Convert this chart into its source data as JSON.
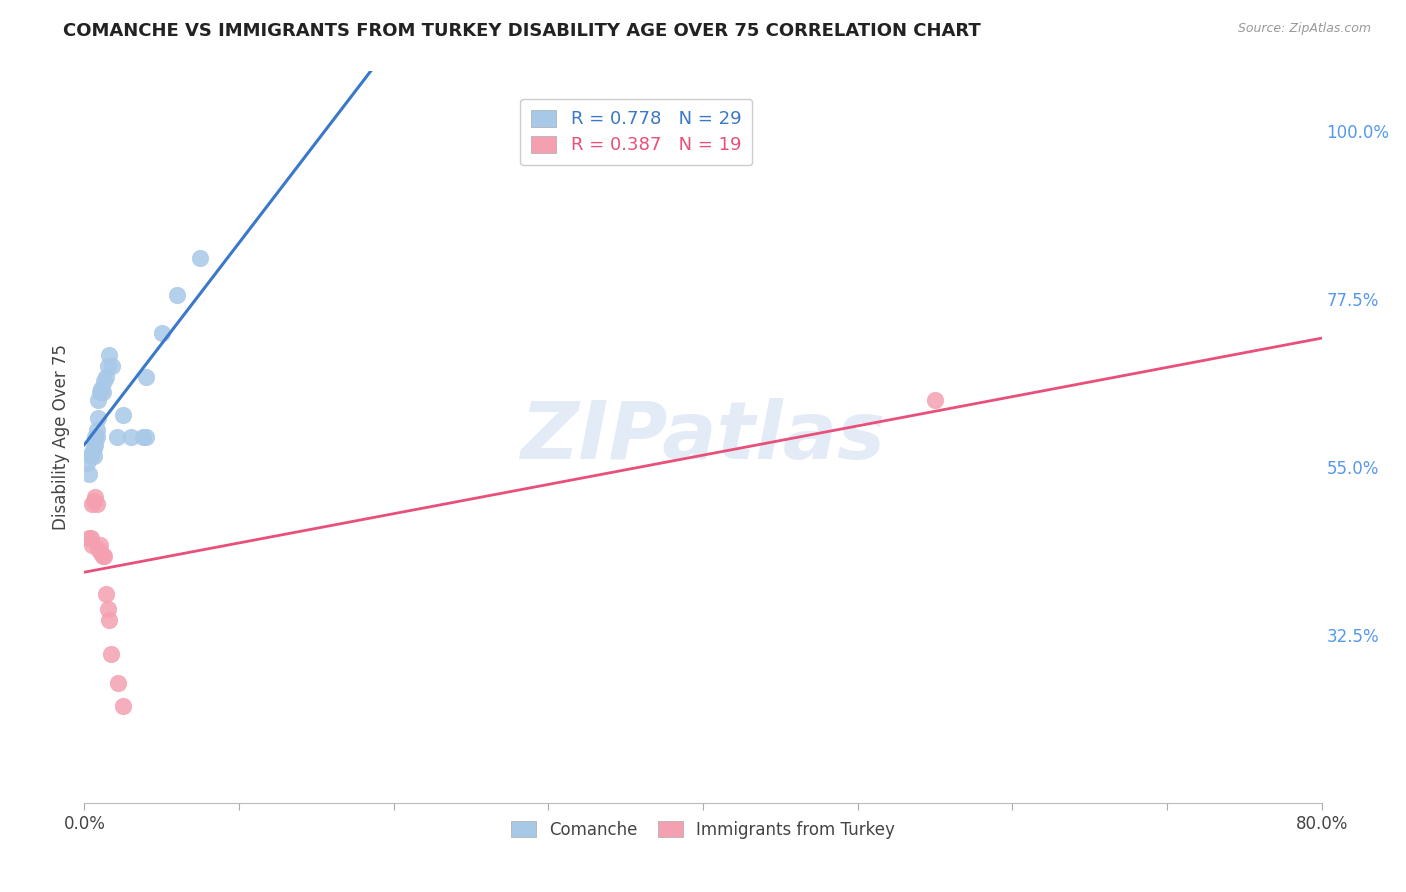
{
  "title": "COMANCHE VS IMMIGRANTS FROM TURKEY DISABILITY AGE OVER 75 CORRELATION CHART",
  "source": "Source: ZipAtlas.com",
  "ylabel": "Disability Age Over 75",
  "xlim": [
    0.0,
    0.8
  ],
  "ylim": [
    0.1,
    1.08
  ],
  "xtick_positions": [
    0.0,
    0.1,
    0.2,
    0.3,
    0.4,
    0.5,
    0.6,
    0.7,
    0.8
  ],
  "xticklabels": [
    "0.0%",
    "",
    "",
    "",
    "",
    "",
    "",
    "",
    "80.0%"
  ],
  "ytick_positions": [
    0.325,
    0.55,
    0.775,
    1.0
  ],
  "ytick_labels": [
    "32.5%",
    "55.0%",
    "77.5%",
    "100.0%"
  ],
  "comanche_r": 0.778,
  "comanche_n": 29,
  "turkey_r": 0.387,
  "turkey_n": 19,
  "comanche_color": "#a8c8e8",
  "turkey_color": "#f4a0b0",
  "comanche_line_color": "#3a78c9",
  "turkey_line_color": "#e8507a",
  "r_text_blue": "#3a78c9",
  "r_text_pink": "#e8507a",
  "n_text_blue": "#3a78c9",
  "n_text_pink": "#e8507a",
  "watermark": "ZIPatlas",
  "comanche_x": [
    0.002,
    0.003,
    0.004,
    0.005,
    0.006,
    0.006,
    0.007,
    0.007,
    0.008,
    0.008,
    0.009,
    0.009,
    0.01,
    0.011,
    0.012,
    0.013,
    0.014,
    0.015,
    0.016,
    0.018,
    0.021,
    0.025,
    0.03,
    0.038,
    0.04,
    0.04,
    0.05,
    0.06,
    0.075
  ],
  "comanche_y": [
    0.555,
    0.54,
    0.565,
    0.57,
    0.565,
    0.575,
    0.58,
    0.59,
    0.6,
    0.59,
    0.615,
    0.64,
    0.65,
    0.655,
    0.65,
    0.665,
    0.67,
    0.685,
    0.7,
    0.685,
    0.59,
    0.62,
    0.59,
    0.59,
    0.59,
    0.67,
    0.73,
    0.78,
    0.83
  ],
  "turkey_x": [
    0.003,
    0.004,
    0.005,
    0.005,
    0.006,
    0.007,
    0.008,
    0.009,
    0.01,
    0.011,
    0.012,
    0.013,
    0.014,
    0.015,
    0.016,
    0.017,
    0.55,
    0.022,
    0.025
  ],
  "turkey_y": [
    0.455,
    0.455,
    0.445,
    0.5,
    0.505,
    0.51,
    0.5,
    0.44,
    0.445,
    0.435,
    0.43,
    0.43,
    0.38,
    0.36,
    0.345,
    0.3,
    0.64,
    0.26,
    0.23
  ],
  "comanche_label": "Comanche",
  "turkey_label": "Immigrants from Turkey"
}
